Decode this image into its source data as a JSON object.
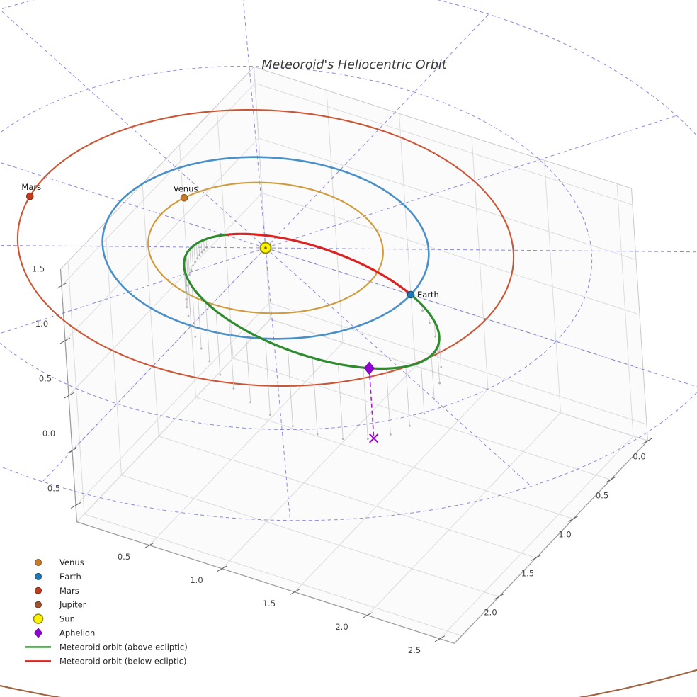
{
  "title": "Meteoroid's Heliocentric Orbit",
  "chart_data": {
    "type": "line",
    "projection": "3d",
    "title": "Meteoroid's Heliocentric Orbit",
    "units": "AU",
    "axes": {
      "x": {
        "tick_labels": [
          "0.5",
          "1.0",
          "1.5",
          "2.0",
          "2.5"
        ],
        "tick_values": [
          0.5,
          1.0,
          1.5,
          2.0,
          2.5
        ],
        "range": [
          0,
          2.6
        ]
      },
      "y": {
        "tick_labels": [
          "0.0",
          "0.5",
          "1.0",
          "1.5",
          "2.0"
        ],
        "tick_values": [
          0.0,
          0.5,
          1.0,
          1.5,
          2.0
        ],
        "range": [
          0,
          2.6
        ]
      },
      "z": {
        "tick_labels": [
          "-0.5",
          "0.0",
          "0.5",
          "1.0",
          "1.5"
        ],
        "tick_values": [
          -0.5,
          0.0,
          0.5,
          1.0,
          1.5
        ],
        "range": [
          -0.65,
          1.65
        ]
      },
      "grid": true,
      "grid_step": 0.5
    },
    "polar_grid": {
      "circle_radii_au": [
        1,
        2,
        3
      ],
      "spoke_count": 12,
      "color": "#4343cf",
      "style": "dashed"
    },
    "sun": {
      "label": "Sun",
      "color": "#FFF200",
      "edge_color": "#8f8f00",
      "position_au": [
        0,
        0,
        0
      ]
    },
    "planets": [
      {
        "name": "Venus",
        "orbit_radius_au": 0.72,
        "angle_deg": 199,
        "marker_color": "#C87A2B",
        "edge_color": "#8a5218",
        "orbit_color": "#D19A3A",
        "labeled": true
      },
      {
        "name": "Earth",
        "orbit_radius_au": 1.0,
        "angle_deg": 0,
        "marker_color": "#1F77B4",
        "edge_color": "#14517c",
        "orbit_color": "#4A90C8",
        "labeled": true
      },
      {
        "name": "Mars",
        "orbit_radius_au": 1.52,
        "angle_deg": 171,
        "marker_color": "#C23B1B",
        "edge_color": "#842610",
        "orbit_color": "#CC5533",
        "labeled": true
      },
      {
        "name": "Jupiter",
        "orbit_radius_au": 5.2,
        "angle_deg": null,
        "marker_color": "#A0522D",
        "edge_color": "#6e3a20",
        "orbit_color": "#A0613F",
        "labeled": false
      }
    ],
    "meteoroid_orbit": {
      "semi_latus_rectum_au": 0.4363,
      "eccentricity": 0.798,
      "perihelion_angle_deg": 225,
      "inclination_z_slope": 0.418,
      "above_ecliptic_color": "#2E8B2E",
      "below_ecliptic_color": "#DD2222",
      "node_angles_deg": [
        0,
        180
      ],
      "aphelion": {
        "angle_deg": 45,
        "x_au": 1.53,
        "y_au": 1.53,
        "z_au": 0.64,
        "color": "#9400D3"
      }
    },
    "drop_lines": {
      "color": "#c4c4c4",
      "dot_color": "#9a9a9a",
      "phi_start_deg": 6,
      "phi_end_deg": 150,
      "phi_step_deg": 4
    }
  },
  "planet_labels": {
    "venus": "Venus",
    "earth": "Earth",
    "mars": "Mars"
  },
  "legend": {
    "items": [
      {
        "label": "Venus",
        "marker": "circle",
        "color": "#C87A2B",
        "edge": "#8a5218"
      },
      {
        "label": "Earth",
        "marker": "circle",
        "color": "#1F77B4",
        "edge": "#14517c"
      },
      {
        "label": "Mars",
        "marker": "circle",
        "color": "#C23B1B",
        "edge": "#842610"
      },
      {
        "label": "Jupiter",
        "marker": "circle",
        "color": "#A0522D",
        "edge": "#6e3a20"
      },
      {
        "label": "Sun",
        "marker": "circle-large",
        "color": "#FFF200",
        "edge": "#8f8f00"
      },
      {
        "label": "Aphelion",
        "marker": "diamond",
        "color": "#9400D3",
        "edge": "#6a0dad"
      },
      {
        "label": "Meteoroid orbit (above ecliptic)",
        "marker": "line",
        "color": "#2E8B2E",
        "edge": "#2E8B2E"
      },
      {
        "label": "Meteoroid orbit (below ecliptic)",
        "marker": "line",
        "color": "#DD2222",
        "edge": "#DD2222"
      }
    ]
  }
}
